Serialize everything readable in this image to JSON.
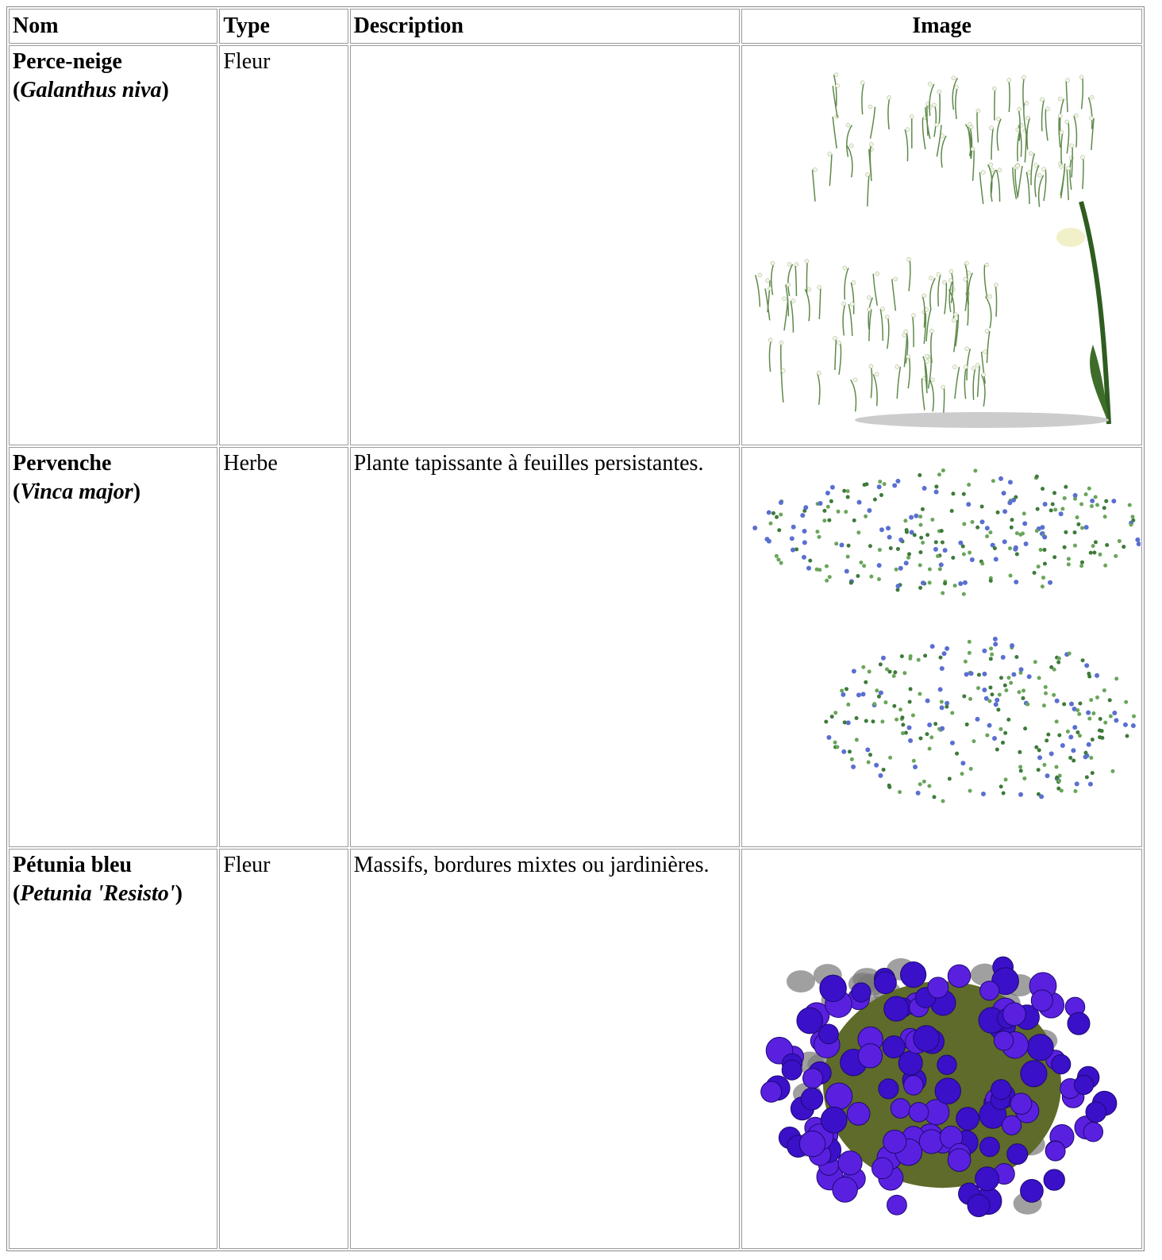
{
  "table": {
    "header": [
      "Nom",
      "Type",
      "Description",
      "Image"
    ],
    "rows": [
      {
        "name": "Perce-neige",
        "scientific": {
          "open": "(",
          "name": "Galanthus niva",
          "close": ")"
        },
        "type": "Fleur"
      },
      {
        "name": "Pervenche",
        "scientific": {
          "open": "(",
          "name": "Vinca major",
          "close": ")"
        },
        "type": "Herbe",
        "description": "Plante tapissante à feuilles persistantes."
      },
      {
        "name": "Pétunia bleu",
        "scientific": {
          "open": "(",
          "name": "Petunia 'Resisto'",
          "close": ")"
        },
        "type": "Fleur",
        "description": "Massifs, bordures mixtes ou jardinières."
      }
    ]
  }
}
